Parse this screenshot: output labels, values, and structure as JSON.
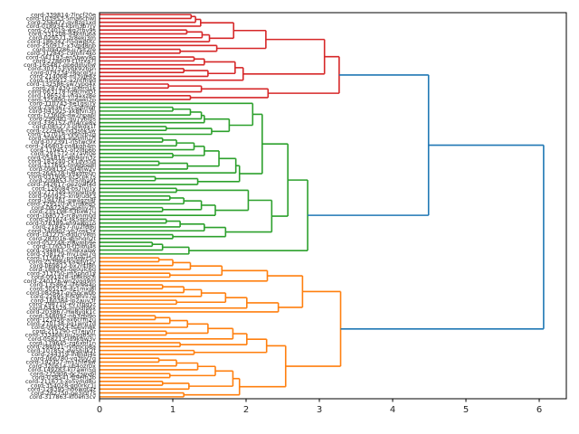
{
  "chart_data": {
    "type": "dendrogram",
    "title": "",
    "xlabel": "",
    "ylabel": "",
    "orientation": "leaves-left-root-right",
    "grid": false,
    "legend": null,
    "n_leaves": 100,
    "xticks": [
      0,
      1,
      2,
      3,
      4,
      5,
      6
    ],
    "xlim": [
      0,
      6.37
    ],
    "colors": {
      "above_threshold_link": "#1f77b4",
      "cluster_red": "#d62728",
      "cluster_green": "#2ca02c",
      "cluster_orange": "#ff7f0e",
      "spine": "#000000",
      "text": "#262626",
      "background": "#ffffff"
    },
    "clusters": [
      {
        "name": "red-cluster",
        "color": "#d62728",
        "n_leaves": 23,
        "root_height": 3.27
      },
      {
        "name": "green-cluster",
        "color": "#2ca02c",
        "n_leaves": 40,
        "root_height": 2.84
      },
      {
        "name": "orange-cluster",
        "color": "#ff7f0e",
        "n_leaves": 37,
        "root_height": 3.29
      }
    ],
    "top_merges": {
      "red_green_merge_height": 4.49,
      "root_merge_height": 6.06
    },
    "tree": [
      6.06,
      [
        4.49,
        [
          3.27,
          [
            3.07,
            [
              2.27,
              [
                1.83,
                [
                  1.38,
                  [
                    1.31,
                    [
                      1.25,
                      0,
                      0
                    ],
                    0
                  ],
                  0
                ],
                [
                  1.5,
                  [
                    1.4,
                    [
                      1.19,
                      0,
                      0
                    ],
                    0
                  ],
                  0
                ]
              ],
              [
                1.6,
                0,
                [
                  1.1,
                  0,
                  0
                ]
              ]
            ],
            [
              1.96,
              [
                1.85,
                [
                  1.43,
                  [
                    1.29,
                    0,
                    0
                  ],
                  0
                ],
                [
                  1.48,
                  [
                    1.15,
                    0,
                    0
                  ],
                  0
                ]
              ],
              0
            ]
          ],
          [
            2.3,
            [
              1.39,
              [
                0.94,
                0,
                0
              ],
              0
            ],
            [
              1.24,
              0,
              0
            ]
          ],
          "#d62728"
        ],
        [
          2.84,
          [
            2.57,
            [
              2.22,
              [
                2.09,
                0,
                [
                  1.77,
                  [
                    1.43,
                    [
                      1.39,
                      [
                        1.24,
                        [
                          1.0,
                          0,
                          0
                        ],
                        0
                      ],
                      0
                    ],
                    0
                  ],
                  [
                    1.53,
                    [
                      0.91,
                      0,
                      0
                    ],
                    0
                  ]
                ]
              ],
              [
                1.91,
                [
                  1.86,
                  [
                    1.63,
                    [
                      1.43,
                      [
                        1.29,
                        [
                          1.05,
                          [
                            0.86,
                            0,
                            0
                          ],
                          0
                        ],
                        0
                      ],
                      [
                        1.0,
                        0,
                        0
                      ]
                    ],
                    [
                      1.2,
                      [
                        0.81,
                        0,
                        0
                      ],
                      0
                    ]
                  ],
                  0
                ],
                [
                  1.34,
                  [
                    0.76,
                    0,
                    0
                  ],
                  0
                ]
              ]
            ],
            [
              2.35,
              [
                2.03,
                [
                  1.05,
                  0,
                  0
                ],
                [
                  1.58,
                  [
                    1.39,
                    [
                      1.15,
                      [
                        0.96,
                        0,
                        0
                      ],
                      0
                    ],
                    [
                      0.86,
                      0,
                      0
                    ]
                  ],
                  0
                ]
              ],
              [
                1.72,
                [
                  1.43,
                  [
                    1.1,
                    [
                      0.91,
                      0,
                      0
                    ],
                    0
                  ],
                  0
                ],
                [
                  1.0,
                  0,
                  0
                ]
              ]
            ]
          ],
          [
            1.22,
            [
              0.86,
              [
                0.72,
                0,
                0
              ],
              0
            ],
            0
          ],
          "#2ca02c"
        ]
      ],
      [
        3.29,
        [
          2.77,
          [
            2.29,
            [
              1.67,
              [
                1.24,
                [
                  1.0,
                  [
                    0.81,
                    0,
                    0
                  ],
                  0
                ],
                0
              ],
              [
                0.96,
                0,
                0
              ]
            ],
            0
          ],
          [
            2.44,
            [
              2.01,
              [
                1.72,
                [
                  1.39,
                  [
                    1.15,
                    [
                      0.86,
                      0,
                      0
                    ],
                    0
                  ],
                  0
                ],
                [
                  1.05,
                  0,
                  0
                ]
              ],
              0
            ],
            0
          ]
        ],
        [
          2.54,
          [
            2.28,
            [
              2.01,
              [
                1.82,
                [
                  1.48,
                  [
                    1.2,
                    [
                      0.96,
                      [
                        0.76,
                        0,
                        0
                      ],
                      0
                    ],
                    0
                  ],
                  [
                    0.91,
                    0,
                    0
                  ]
                ],
                0
              ],
              [
                1.1,
                0,
                0
              ]
            ],
            [
              1.29,
              0,
              0
            ]
          ],
          [
            1.91,
            [
              1.82,
              [
                1.58,
                [
                  1.34,
                  [
                    1.05,
                    [
                      0.81,
                      0,
                      0
                    ],
                    0
                  ],
                  0
                ],
                [
                  0.96,
                  0,
                  0
                ]
              ],
              [
                1.22,
                [
                  0.86,
                  0,
                  0
                ],
                0
              ]
            ],
            [
              1.15,
              0,
              0
            ]
          ]
        ],
        "#ff7f0e"
      ]
    ],
    "leaf_labels": [
      "cord-339814-7lncf20e",
      "cord-103953-5ma6cnwl",
      "cord-256472-qv8zg1xd",
      "cord-018934-kpm3b7ry",
      "cord-274019-wq2thv9s",
      "cord-331208-d4xnfu6a",
      "cord-029571-zr8ekj3m",
      "cord-186342-h5qwp0tc",
      "cord-250917-x3vgd8nb",
      "cord-094286-u7slt2fe",
      "cord-312845-c9mhr4ko",
      "cord-047193-en5bwy8q",
      "cord-228609-t1fzxa7j",
      "cord-165487-gp6dmv0w",
      "cord-303751-ybk92hsn",
      "cord-079234-r8ocql5u",
      "cord-214068-ml3vje6z",
      "cord-350912-a2ntfh9d",
      "cord-132586-sw7ypg4x",
      "cord-287430-ij0bru1k",
      "cord-063178-fq9cmd5t",
      "cord-196524-vh4axz8e",
      "cord-325890-on6wkl2p",
      "cord-110743-be1gsj7y",
      "cord-258367-zc5qtm9r",
      "cord-041925-xk8fvn3h",
      "cord-173609-dw2hpa6l",
      "cord-299481-gu7ybi0s",
      "cord-336152-mt4rce8v",
      "cord-085273-pl9jdx1f",
      "cord-222946-hq3sok5w",
      "cord-157018-vy6nzb2g",
      "cord-308564-ea0mfu7j",
      "cord-072391-ri5twc9x",
      "cord-246803-ns8kqh4m",
      "cord-119457-of2ldp6b",
      "cord-291572-jx7avt0e",
      "cord-054816-wb9grn3z",
      "cord-183240-ck1uys5q",
      "cord-317695-tm6hoe8i",
      "cord-098132-qd4fjw2v",
      "cord-264578-ly8xbm0n",
      "cord-031906-uz3cpk7s",
      "cord-209853-hr5nqa9t",
      "cord-342617-ge2owf4d",
      "cord-126084-bs7ivl1y",
      "cord-277349-km0ethj6",
      "cord-060925-xn9rudc3",
      "cord-194761-pw4gzs8f",
      "cord-329510-vt1mkeq5",
      "cord-087246-ao6ljy2h",
      "cord-235198-fi3bxw7u",
      "cord-168573-rc8vnm0d",
      "cord-301624-sk5qpt4z",
      "cord-076389-eh9awg1o",
      "cord-218457-nu2fdl6j",
      "cord-346902-yb7osk3x",
      "cord-141275-dg0crv8m",
      "cord-283016-wj5hqn2t",
      "cord-052748-zf8ymp9e",
      "cord-176530-tl3ibu4s",
      "cord-294863-ch6kxa0w",
      "cord-338129-mv1gej7q",
      "cord-115607-po9swz5n",
      "cord-253984-ka4dyr2v",
      "cord-069812-bx7ntf8h",
      "cord-188345-qe0ulc6g",
      "cord-313750-im5phd1y",
      "cord-091428-st8kbo3j",
      "cord-240176-wn2vqg9m",
      "cord-135862-uf6rea4p",
      "cord-305219-dz1mxj8l",
      "cord-082647-gy5ocw0b",
      "cord-226953-rk9hni7e",
      "cord-160384-lp2auv3f",
      "cord-298710-ev7tbq5z",
      "cord-044529-jm0dfs6x",
      "cord-203867-hw8ygk1c",
      "cord-348092-nb3zpl9o",
      "cord-123456-ax6crm2u",
      "cord-270138-oq1wnt7d",
      "cord-096524-ts4ivh8k",
      "cord-215790-cf7ejy0r",
      "cord-333468-pu2sgb5m",
      "cord-058213-ld9kqw3v",
      "cord-179645-zg6xof1n",
      "cord-286031-ry0mcp8a",
      "cord-107852-ew5buk2t",
      "cord-244319-ih8ndj4s",
      "cord-066780-vq3tly7g",
      "cord-192457-ms1hfe9w",
      "cord-320614-ub4ozr0x",
      "cord-149283-kj7awn5q",
      "cord-275906-gc2spv6i",
      "cord-038541-ft9elh3b",
      "cord-211673-xo5ymd8u",
      "cord-354028-qn0rkc1j",
      "cord-128395-hb6wgt4z",
      "cord-262750-pe3juf7s",
      "cord-317863-kf0eh3cv"
    ]
  }
}
